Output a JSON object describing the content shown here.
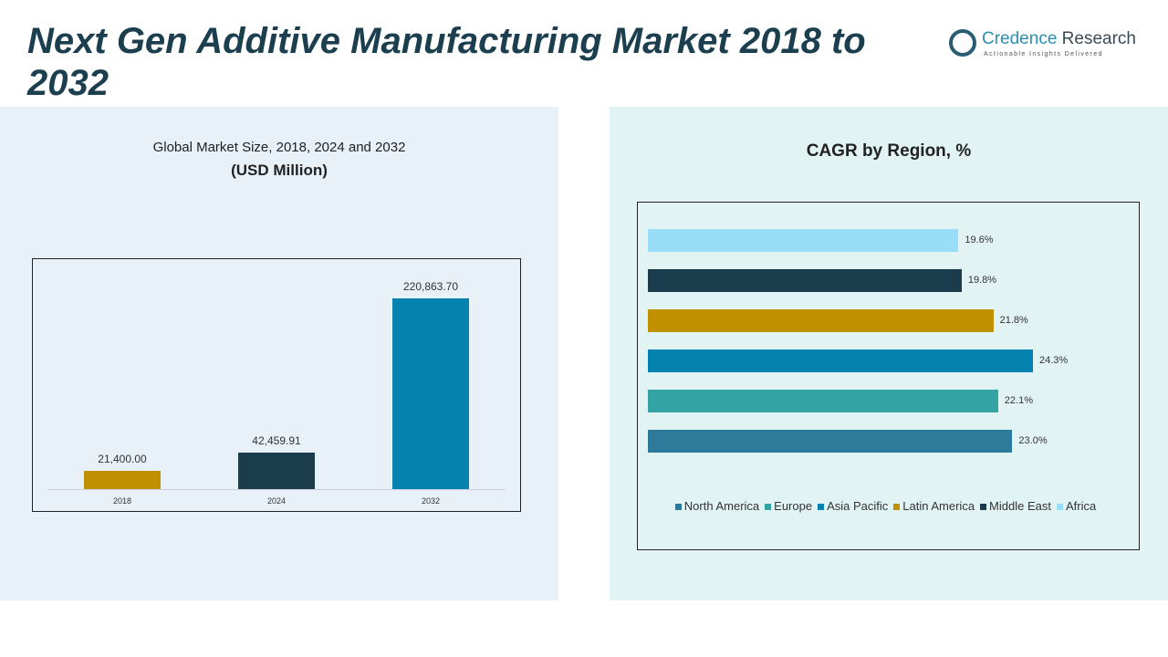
{
  "title": "Next Gen Additive Manufacturing Market 2018 to 2032",
  "logo": {
    "name_a": "Credence",
    "name_b": " Research",
    "tagline": "Actionable Insights Delivered"
  },
  "chart_data": [
    {
      "type": "bar",
      "title": "Global Market Size, 2018, 2024 and 2032",
      "subtitle": "(USD Million)",
      "categories": [
        "2018",
        "2024",
        "2032"
      ],
      "values": [
        21400.0,
        42459.91,
        220863.7
      ],
      "labels": [
        "21,400.00",
        "42,459.91",
        "220,863.70"
      ],
      "colors": [
        "#c09000",
        "#1a3c4c",
        "#0582b0"
      ],
      "grid": false
    },
    {
      "type": "bar",
      "orientation": "horizontal",
      "title": "CAGR by Region, %",
      "categories": [
        "North America",
        "Europe",
        "Asia Pacific",
        "Latin America",
        "Middle East",
        "Africa"
      ],
      "values": [
        23.0,
        22.1,
        24.3,
        21.8,
        19.8,
        19.6
      ],
      "labels": [
        "23.0%",
        "22.1%",
        "24.3%",
        "21.8%",
        "19.8%",
        "19.6%"
      ],
      "colors": [
        "#2e7a9a",
        "#33a3a3",
        "#0582b0",
        "#c09000",
        "#1a3c4c",
        "#99def8"
      ],
      "legend": "bottom",
      "grid": false
    }
  ]
}
